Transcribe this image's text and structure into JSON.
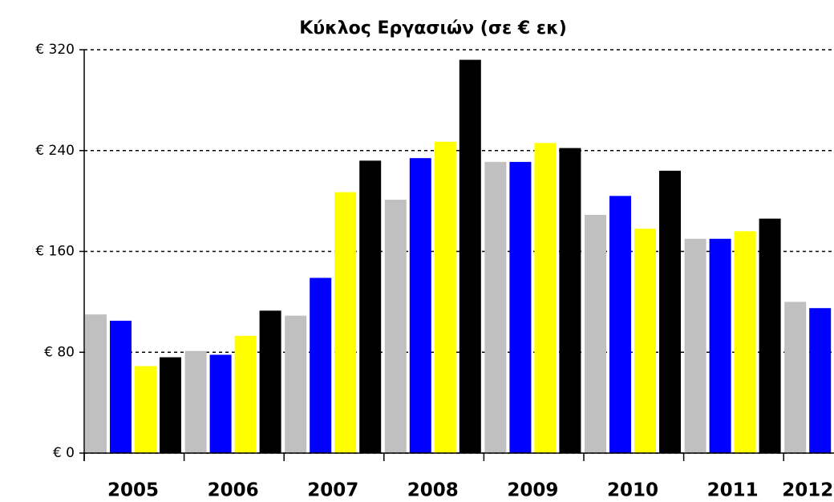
{
  "chart_data": {
    "type": "bar",
    "title": "Κύκλος Εργασιών (σε € εκ)",
    "categories": [
      "2005",
      "2006",
      "2007",
      "2008",
      "2009",
      "2010",
      "2011",
      "2012"
    ],
    "series": [
      {
        "color": "#c0c0c0",
        "values": [
          110,
          81,
          109,
          201,
          231,
          189,
          170,
          120
        ]
      },
      {
        "color": "#0000ff",
        "values": [
          105,
          78,
          139,
          234,
          231,
          204,
          170,
          115
        ]
      },
      {
        "color": "#ffff00",
        "values": [
          69,
          93,
          207,
          247,
          246,
          178,
          176,
          null
        ]
      },
      {
        "color": "#000000",
        "values": [
          76,
          113,
          232,
          312,
          242,
          224,
          186,
          null
        ]
      }
    ],
    "ylim": [
      0,
      320
    ],
    "yticks": [
      {
        "value": 0,
        "label": "€ 0"
      },
      {
        "value": 80,
        "label": "€ 80"
      },
      {
        "value": 160,
        "label": "€ 160"
      },
      {
        "value": 240,
        "label": "€ 240"
      },
      {
        "value": 320,
        "label": "€ 320"
      }
    ],
    "grid": true
  }
}
